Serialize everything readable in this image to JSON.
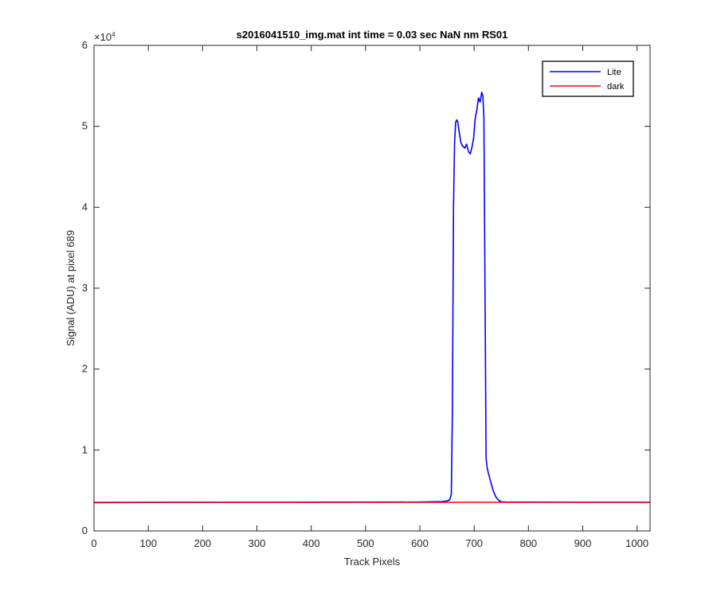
{
  "chart_data": {
    "type": "line",
    "title": "s2016041510_img.mat int time = 0.03 sec  NaN nm RS01",
    "xlabel": "Track Pixels",
    "ylabel": "Signal (ADU) at pixel 689",
    "xlim": [
      0,
      1024
    ],
    "ylim": [
      0,
      60000
    ],
    "xticks": [
      0,
      100,
      200,
      300,
      400,
      500,
      600,
      700,
      800,
      900,
      1000
    ],
    "yticks": [
      0,
      10000,
      20000,
      30000,
      40000,
      50000,
      60000
    ],
    "ytick_labels": [
      "0",
      "1",
      "2",
      "3",
      "4",
      "5",
      "6"
    ],
    "y_exponent_base": "×10",
    "y_exponent_power": "4",
    "grid": false,
    "legend_position": "top-right",
    "series": [
      {
        "name": "Lite",
        "color": "#0000ff",
        "x": [
          0,
          100,
          200,
          300,
          400,
          500,
          600,
          640,
          650,
          655,
          658,
          660,
          662,
          664,
          666,
          668,
          670,
          672,
          675,
          678,
          680,
          683,
          686,
          690,
          693,
          696,
          699,
          702,
          705,
          708,
          711,
          714,
          716,
          718,
          720,
          722,
          724,
          726,
          730,
          735,
          740,
          745,
          750,
          755,
          760,
          800,
          900,
          1024
        ],
        "y": [
          3500,
          3520,
          3530,
          3540,
          3550,
          3560,
          3570,
          3620,
          3700,
          3850,
          4500,
          15000,
          40000,
          48000,
          50500,
          50800,
          50500,
          49500,
          48200,
          47600,
          47500,
          47300,
          47800,
          46800,
          46600,
          47400,
          48500,
          51000,
          52000,
          53500,
          53000,
          54200,
          53800,
          51000,
          30000,
          9000,
          7800,
          7200,
          6200,
          5000,
          4200,
          3800,
          3600,
          3580,
          3560,
          3560,
          3540,
          3540
        ]
      },
      {
        "name": "dark",
        "color": "#ff0000",
        "x": [
          0,
          100,
          200,
          300,
          400,
          500,
          600,
          700,
          800,
          900,
          1024
        ],
        "y": [
          3540,
          3540,
          3540,
          3540,
          3540,
          3540,
          3540,
          3540,
          3540,
          3540,
          3540
        ]
      }
    ]
  }
}
